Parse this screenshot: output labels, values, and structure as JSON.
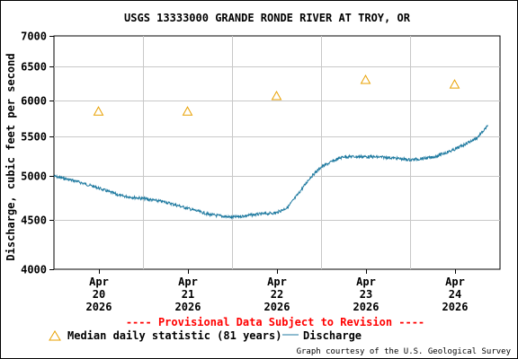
{
  "chart_data": {
    "type": "line",
    "title": "USGS 13333000 GRANDE RONDE RIVER AT TROY, OR",
    "ylabel": "Discharge, cubic feet per second",
    "xlabel": "",
    "y_scale": "log",
    "ylim": [
      4000,
      7000
    ],
    "yticks": [
      "4000",
      "4500",
      "5000",
      "5500",
      "6000",
      "6500",
      "7000"
    ],
    "xticks": [
      {
        "month": "Apr",
        "day": "20",
        "year": "2026"
      },
      {
        "month": "Apr",
        "day": "21",
        "year": "2026"
      },
      {
        "month": "Apr",
        "day": "22",
        "year": "2026"
      },
      {
        "month": "Apr",
        "day": "23",
        "year": "2026"
      },
      {
        "month": "Apr",
        "day": "24",
        "year": "2026"
      }
    ],
    "grid": true,
    "series": [
      {
        "name": "Discharge",
        "color": "#1f7aa0",
        "x": [
          "2026-04-19T12:00",
          "2026-04-19T18:00",
          "2026-04-20T00:00",
          "2026-04-20T06:00",
          "2026-04-20T12:00",
          "2026-04-20T18:00",
          "2026-04-21T00:00",
          "2026-04-21T06:00",
          "2026-04-21T12:00",
          "2026-04-21T18:00",
          "2026-04-22T00:00",
          "2026-04-22T03:00",
          "2026-04-22T06:00",
          "2026-04-22T09:00",
          "2026-04-22T12:00",
          "2026-04-22T15:00",
          "2026-04-22T18:00",
          "2026-04-23T00:00",
          "2026-04-23T06:00",
          "2026-04-23T12:00",
          "2026-04-23T18:00",
          "2026-04-24T00:00",
          "2026-04-24T06:00",
          "2026-04-24T09:00"
        ],
        "y": [
          5000,
          4940,
          4860,
          4770,
          4740,
          4700,
          4630,
          4560,
          4530,
          4560,
          4580,
          4640,
          4800,
          4980,
          5110,
          5180,
          5240,
          5240,
          5230,
          5200,
          5230,
          5330,
          5480,
          5640
        ]
      },
      {
        "name": "Median daily statistic (81 years)",
        "marker": "triangle",
        "color": "#e8a000",
        "x": [
          "2026-04-20T00:00",
          "2026-04-21T00:00",
          "2026-04-22T00:00",
          "2026-04-23T00:00",
          "2026-04-24T00:00"
        ],
        "y": [
          5840,
          5840,
          6060,
          6300,
          6230
        ]
      }
    ],
    "provisional_note": "---- Provisional Data Subject to Revision ----",
    "provisional_color": "#ff0000",
    "legend": {
      "placement": "bottom-left",
      "median_label": "Median daily statistic (81 years)",
      "discharge_label": "Discharge"
    },
    "credit": "Graph courtesy of the U.S. Geological Survey"
  }
}
